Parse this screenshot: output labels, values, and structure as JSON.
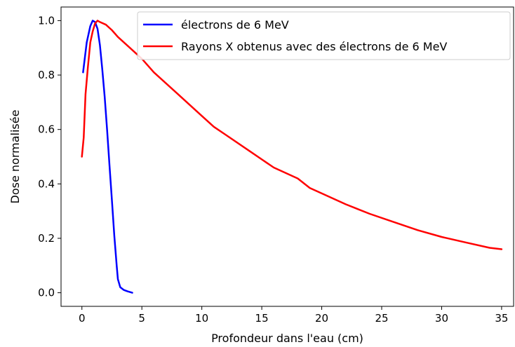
{
  "chart_data": {
    "type": "line",
    "xlabel": "Profondeur dans l'eau (cm)",
    "ylabel": "Dose normalisée",
    "xlim": [
      -1.74,
      36.0
    ],
    "ylim": [
      -0.05,
      1.05
    ],
    "x_ticks": [
      0,
      5,
      10,
      15,
      20,
      25,
      30,
      35
    ],
    "x_tick_labels": [
      "0",
      "5",
      "10",
      "15",
      "20",
      "25",
      "30",
      "35"
    ],
    "y_ticks": [
      0.0,
      0.2,
      0.4,
      0.6,
      0.8,
      1.0
    ],
    "y_tick_labels": [
      "0.0",
      "0.2",
      "0.4",
      "0.6",
      "0.8",
      "1.0"
    ],
    "grid": false,
    "legend_position": "top-right",
    "series": [
      {
        "name": "électrons de 6 MeV",
        "color": "#0000ff",
        "x": [
          0.1,
          0.4,
          0.7,
          0.9,
          1.1,
          1.3,
          1.5,
          1.7,
          1.9,
          2.1,
          2.3,
          2.5,
          2.7,
          2.9,
          3.0,
          3.2,
          3.5,
          3.8,
          4.2
        ],
        "y": [
          0.81,
          0.92,
          0.98,
          1.0,
          0.995,
          0.97,
          0.91,
          0.82,
          0.72,
          0.6,
          0.47,
          0.34,
          0.21,
          0.1,
          0.05,
          0.02,
          0.01,
          0.005,
          0.0
        ]
      },
      {
        "name": "Rayons X obtenus avec des électrons de 6 MeV",
        "color": "#ff0000",
        "x": [
          0.0,
          0.15,
          0.3,
          0.5,
          0.7,
          0.9,
          1.1,
          1.3,
          1.5,
          2.0,
          2.5,
          3.0,
          4.0,
          5.0,
          6.0,
          8.0,
          10.0,
          11.0,
          12.0,
          14.0,
          15.0,
          16.0,
          18.0,
          19.0,
          20.0,
          22.0,
          24.0,
          26.0,
          28.0,
          30.0,
          32.0,
          34.0,
          35.0
        ],
        "y": [
          0.5,
          0.57,
          0.73,
          0.83,
          0.92,
          0.96,
          0.99,
          1.0,
          0.995,
          0.985,
          0.965,
          0.94,
          0.9,
          0.86,
          0.81,
          0.73,
          0.65,
          0.61,
          0.58,
          0.52,
          0.49,
          0.46,
          0.42,
          0.385,
          0.365,
          0.325,
          0.29,
          0.26,
          0.23,
          0.205,
          0.185,
          0.165,
          0.16
        ]
      }
    ]
  }
}
